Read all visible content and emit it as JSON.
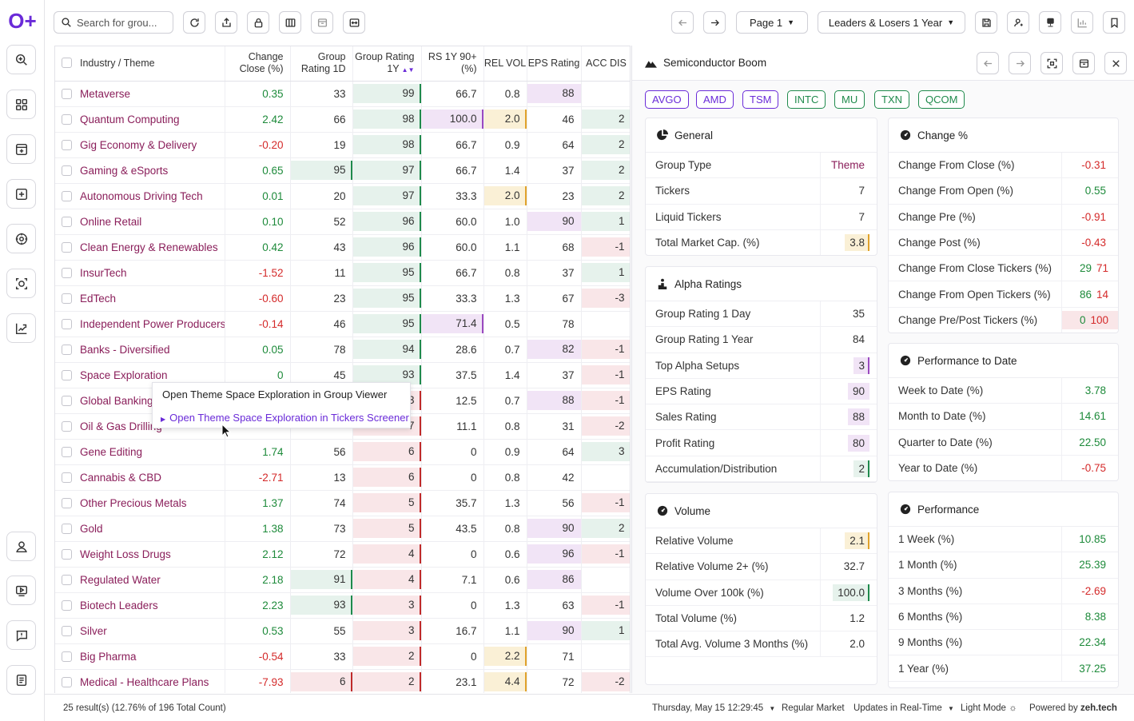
{
  "app": {
    "logo": "O+"
  },
  "toolbar": {
    "search_placeholder": "Search for grou...",
    "page_label": "Page 1",
    "view_label": "Leaders & Losers 1 Year"
  },
  "grid": {
    "headers": [
      "Industry / Theme",
      "Change Close (%)",
      "Group Rating 1D",
      "Group Rating 1Y",
      "RS 1Y 90+ (%)",
      "REL VOL",
      "EPS Rating",
      "ACC DIS"
    ],
    "rows": [
      {
        "name": "Metaverse",
        "chg": "0.35",
        "gr1d": "33",
        "gr1y": "99",
        "rs": "66.7",
        "rel": "0.8",
        "eps": "88",
        "acc": ""
      },
      {
        "name": "Quantum Computing",
        "chg": "2.42",
        "gr1d": "66",
        "gr1y": "98",
        "rs": "100.0",
        "rel": "2.0",
        "eps": "46",
        "acc": "2"
      },
      {
        "name": "Gig Economy & Delivery",
        "chg": "-0.20",
        "gr1d": "19",
        "gr1y": "98",
        "rs": "66.7",
        "rel": "0.9",
        "eps": "64",
        "acc": "2"
      },
      {
        "name": "Gaming & eSports",
        "chg": "0.65",
        "gr1d": "95",
        "gr1y": "97",
        "rs": "66.7",
        "rel": "1.4",
        "eps": "37",
        "acc": "2"
      },
      {
        "name": "Autonomous Driving Tech",
        "chg": "0.01",
        "gr1d": "20",
        "gr1y": "97",
        "rs": "33.3",
        "rel": "2.0",
        "eps": "23",
        "acc": "2"
      },
      {
        "name": "Online Retail",
        "chg": "0.10",
        "gr1d": "52",
        "gr1y": "96",
        "rs": "60.0",
        "rel": "1.0",
        "eps": "90",
        "acc": "1"
      },
      {
        "name": "Clean Energy & Renewables",
        "chg": "0.42",
        "gr1d": "43",
        "gr1y": "96",
        "rs": "60.0",
        "rel": "1.1",
        "eps": "68",
        "acc": "-1"
      },
      {
        "name": "InsurTech",
        "chg": "-1.52",
        "gr1d": "11",
        "gr1y": "95",
        "rs": "66.7",
        "rel": "0.8",
        "eps": "37",
        "acc": "1"
      },
      {
        "name": "EdTech",
        "chg": "-0.60",
        "gr1d": "23",
        "gr1y": "95",
        "rs": "33.3",
        "rel": "1.3",
        "eps": "67",
        "acc": "-3"
      },
      {
        "name": "Independent Power Producers",
        "chg": "-0.14",
        "gr1d": "46",
        "gr1y": "95",
        "rs": "71.4",
        "rel": "0.5",
        "eps": "78",
        "acc": ""
      },
      {
        "name": "Banks - Diversified",
        "chg": "0.05",
        "gr1d": "78",
        "gr1y": "94",
        "rs": "28.6",
        "rel": "0.7",
        "eps": "82",
        "acc": "-1"
      },
      {
        "name": "Space Exploration",
        "chg": "0",
        "gr1d": "45",
        "gr1y": "93",
        "rs": "37.5",
        "rel": "1.4",
        "eps": "37",
        "acc": "-1"
      },
      {
        "name": "Global Banking",
        "chg": "",
        "gr1d": "",
        "gr1y": "3",
        "rs": "12.5",
        "rel": "0.7",
        "eps": "88",
        "acc": "-1"
      },
      {
        "name": "Oil & Gas Drilling",
        "chg": "",
        "gr1d": "",
        "gr1y": "7",
        "rs": "11.1",
        "rel": "0.8",
        "eps": "31",
        "acc": "-2"
      },
      {
        "name": "Gene Editing",
        "chg": "1.74",
        "gr1d": "56",
        "gr1y": "6",
        "rs": "0",
        "rel": "0.9",
        "eps": "64",
        "acc": "3"
      },
      {
        "name": "Cannabis & CBD",
        "chg": "-2.71",
        "gr1d": "13",
        "gr1y": "6",
        "rs": "0",
        "rel": "0.8",
        "eps": "42",
        "acc": ""
      },
      {
        "name": "Other Precious Metals",
        "chg": "1.37",
        "gr1d": "74",
        "gr1y": "5",
        "rs": "35.7",
        "rel": "1.3",
        "eps": "56",
        "acc": "-1"
      },
      {
        "name": "Gold",
        "chg": "1.38",
        "gr1d": "73",
        "gr1y": "5",
        "rs": "43.5",
        "rel": "0.8",
        "eps": "90",
        "acc": "2"
      },
      {
        "name": "Weight Loss Drugs",
        "chg": "2.12",
        "gr1d": "72",
        "gr1y": "4",
        "rs": "0",
        "rel": "0.6",
        "eps": "96",
        "acc": "-1"
      },
      {
        "name": "Regulated Water",
        "chg": "2.18",
        "gr1d": "91",
        "gr1y": "4",
        "rs": "7.1",
        "rel": "0.6",
        "eps": "86",
        "acc": ""
      },
      {
        "name": "Biotech Leaders",
        "chg": "2.23",
        "gr1d": "93",
        "gr1y": "3",
        "rs": "0",
        "rel": "1.3",
        "eps": "63",
        "acc": "-1"
      },
      {
        "name": "Silver",
        "chg": "0.53",
        "gr1d": "55",
        "gr1y": "3",
        "rs": "16.7",
        "rel": "1.1",
        "eps": "90",
        "acc": "1"
      },
      {
        "name": "Big Pharma",
        "chg": "-0.54",
        "gr1d": "33",
        "gr1y": "2",
        "rs": "0",
        "rel": "2.2",
        "eps": "71",
        "acc": ""
      },
      {
        "name": "Medical - Healthcare Plans",
        "chg": "-7.93",
        "gr1d": "6",
        "gr1y": "2",
        "rs": "23.1",
        "rel": "4.4",
        "eps": "72",
        "acc": "-2"
      }
    ]
  },
  "context_menu": {
    "item1": "Open Theme Space Exploration in Group Viewer",
    "item2": "Open Theme Space Exploration in Tickers Screener"
  },
  "panel": {
    "title": "Semiconductor Boom",
    "tickers": [
      "AVGO",
      "AMD",
      "TSM",
      "INTC",
      "MU",
      "TXN",
      "QCOM"
    ],
    "general": {
      "title": "General",
      "rows": [
        {
          "k": "Group Type",
          "v": "Theme"
        },
        {
          "k": "Tickers",
          "v": "7"
        },
        {
          "k": "Liquid Tickers",
          "v": "7"
        },
        {
          "k": "Total Market Cap. (%)",
          "v": "3.8"
        }
      ]
    },
    "alpha": {
      "title": "Alpha Ratings",
      "rows": [
        {
          "k": "Group Rating 1 Day",
          "v": "35"
        },
        {
          "k": "Group Rating 1 Year",
          "v": "84"
        },
        {
          "k": "Top Alpha Setups",
          "v": "3"
        },
        {
          "k": "EPS Rating",
          "v": "90"
        },
        {
          "k": "Sales Rating",
          "v": "88"
        },
        {
          "k": "Profit Rating",
          "v": "80"
        },
        {
          "k": "Accumulation/Distribution",
          "v": "2"
        }
      ]
    },
    "volume": {
      "title": "Volume",
      "rows": [
        {
          "k": "Relative Volume",
          "v": "2.1"
        },
        {
          "k": "Relative Volume 2+ (%)",
          "v": "32.7"
        },
        {
          "k": "Volume Over 100k (%)",
          "v": "100.0"
        },
        {
          "k": "Total Volume (%)",
          "v": "1.2"
        },
        {
          "k": "Total Avg. Volume 3 Months (%)",
          "v": "2.0"
        }
      ]
    },
    "change": {
      "title": "Change %",
      "rows": [
        {
          "k": "Change From Close (%)",
          "v": "-0.31"
        },
        {
          "k": "Change From Open (%)",
          "v": "0.55"
        },
        {
          "k": "Change Pre (%)",
          "v": "-0.91"
        },
        {
          "k": "Change Post (%)",
          "v": "-0.43"
        },
        {
          "k": "Change From Close Tickers (%)",
          "v1": "29",
          "v2": "71"
        },
        {
          "k": "Change From Open Tickers (%)",
          "v1": "86",
          "v2": "14"
        },
        {
          "k": "Change Pre/Post Tickers (%)",
          "v1": "0",
          "v2": "100"
        }
      ]
    },
    "ptd": {
      "title": "Performance to Date",
      "rows": [
        {
          "k": "Week to Date (%)",
          "v": "3.78"
        },
        {
          "k": "Month to Date (%)",
          "v": "14.61"
        },
        {
          "k": "Quarter to Date (%)",
          "v": "22.50"
        },
        {
          "k": "Year to Date (%)",
          "v": "-0.75"
        }
      ]
    },
    "perf": {
      "title": "Performance",
      "rows": [
        {
          "k": "1 Week (%)",
          "v": "10.85"
        },
        {
          "k": "1 Month (%)",
          "v": "25.39"
        },
        {
          "k": "3 Months (%)",
          "v": "-2.69"
        },
        {
          "k": "6 Months (%)",
          "v": "8.38"
        },
        {
          "k": "9 Months (%)",
          "v": "22.34"
        },
        {
          "k": "1 Year (%)",
          "v": "37.25"
        }
      ]
    }
  },
  "status": {
    "results": "25 result(s) (12.76% of 196 Total Count)",
    "datetime": "Thursday, May 15 12:29:45",
    "market": "Regular Market",
    "updates": "Updates in Real-Time",
    "mode": "Light Mode",
    "powered": "Powered by",
    "brand": "zeh.tech"
  },
  "colors": {
    "accent": "#6a2bd8",
    "positive": "#1d8a3a",
    "negative": "#d42a2a",
    "name": "#8a1e5a"
  }
}
